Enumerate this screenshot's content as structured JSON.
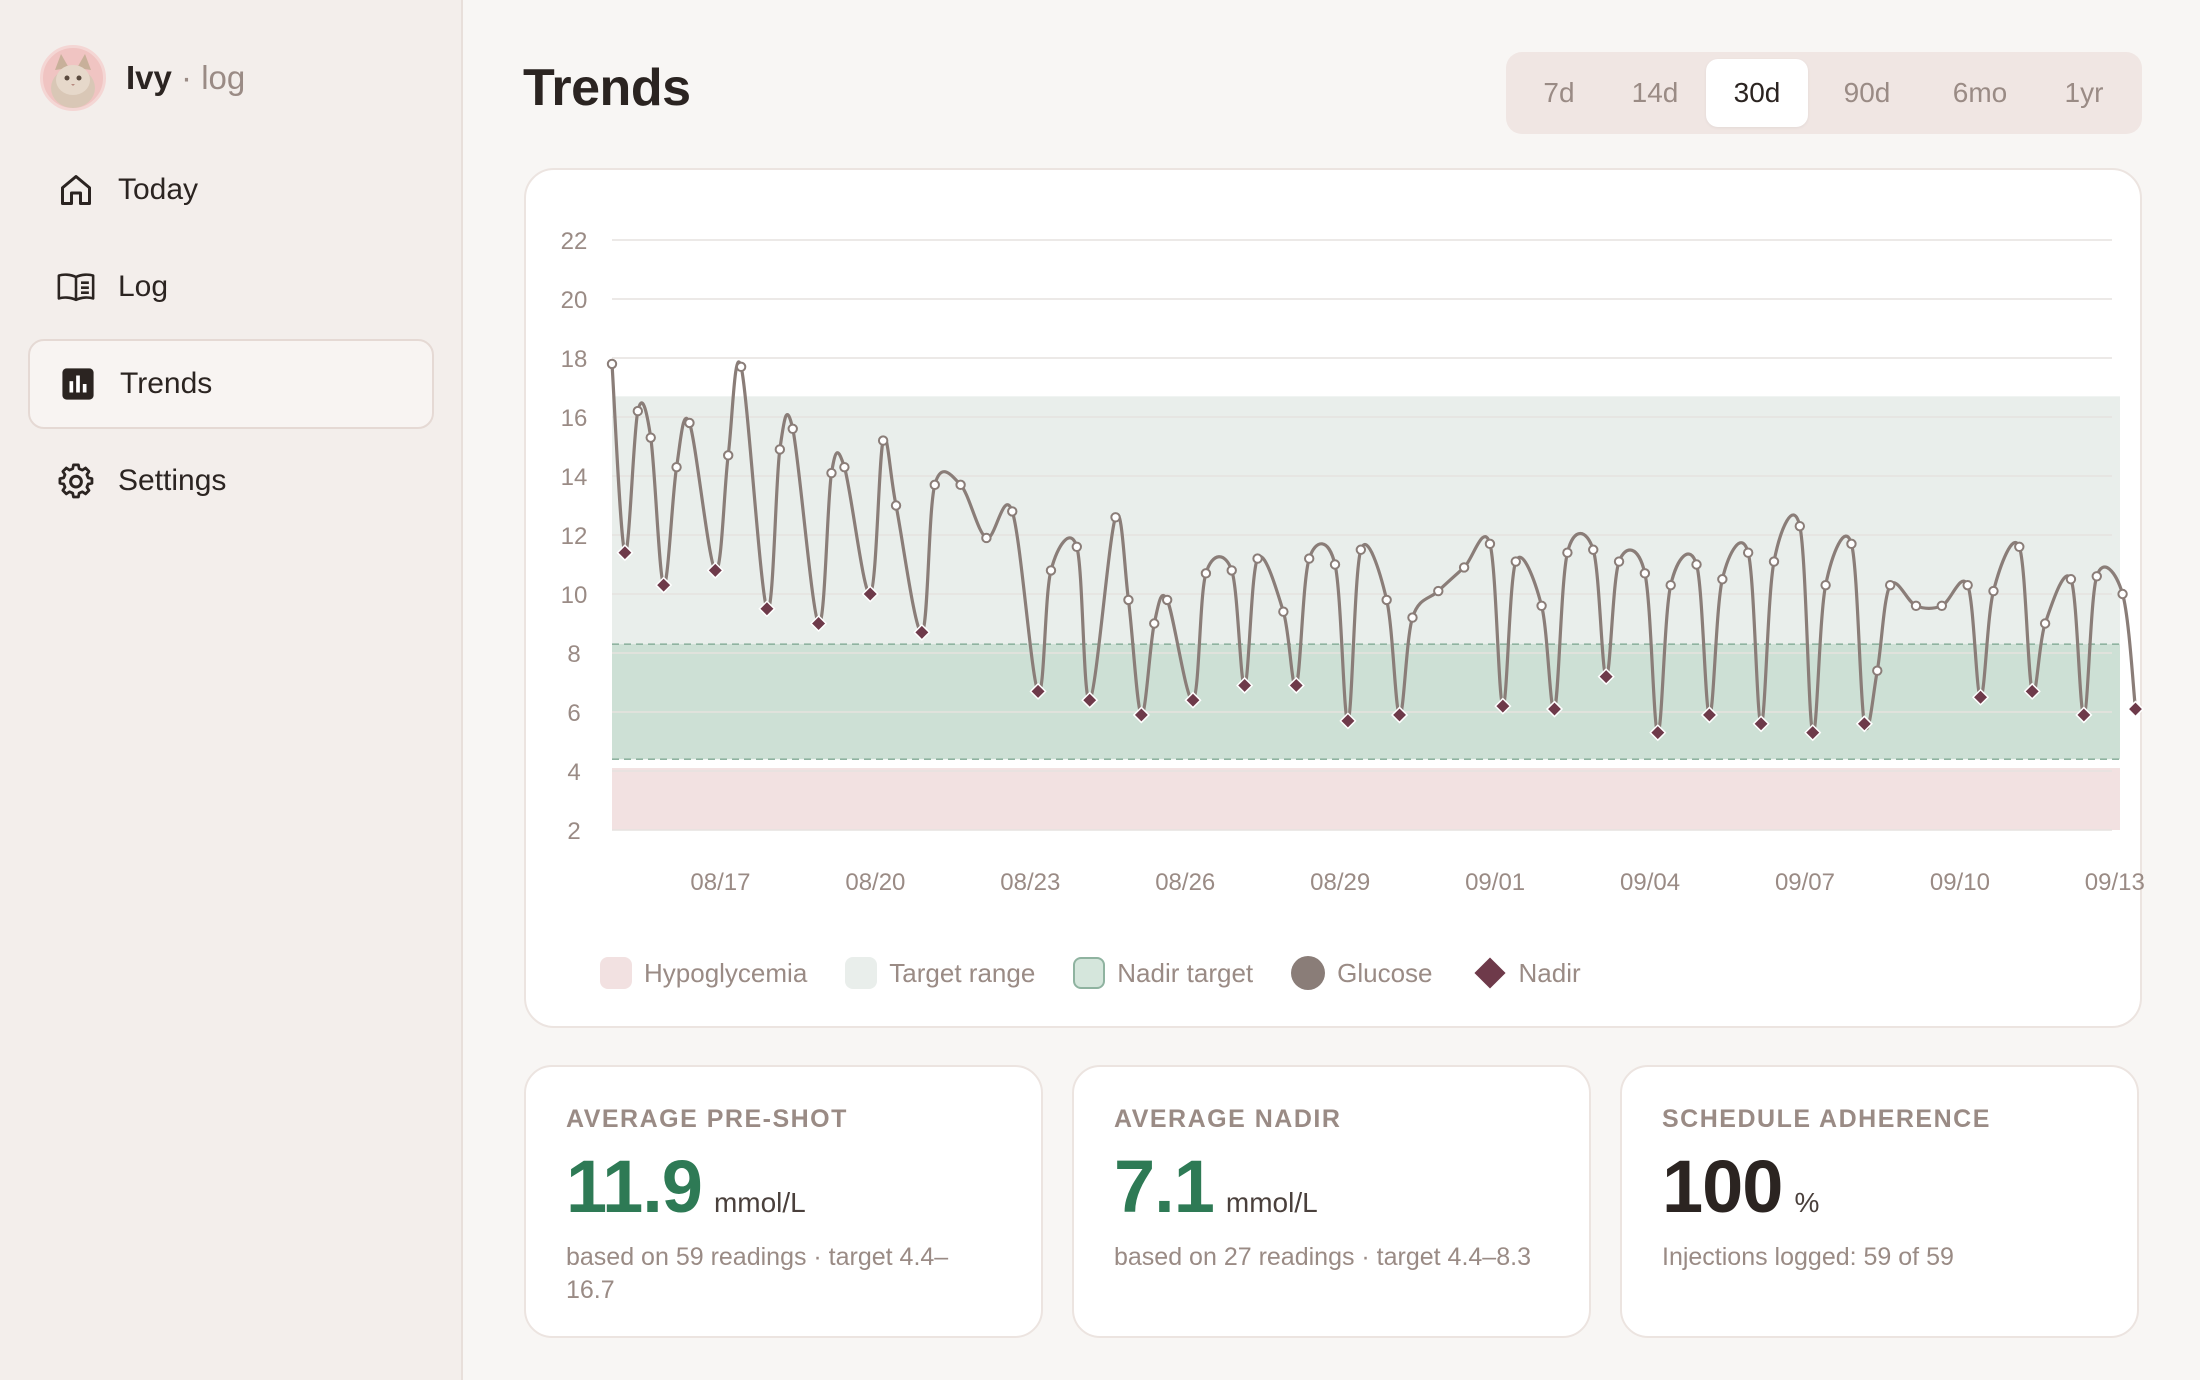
{
  "brand": {
    "name": "Ivy",
    "separator": " · ",
    "sub": "log"
  },
  "nav": [
    {
      "label": "Today",
      "icon": "home-icon",
      "active": false
    },
    {
      "label": "Log",
      "icon": "book-icon",
      "active": false
    },
    {
      "label": "Trends",
      "icon": "bar-chart-icon",
      "active": true
    },
    {
      "label": "Settings",
      "icon": "gear-icon",
      "active": false
    }
  ],
  "page": {
    "title": "Trends"
  },
  "ranges": [
    {
      "label": "7d",
      "active": false
    },
    {
      "label": "14d",
      "active": false
    },
    {
      "label": "30d",
      "active": true
    },
    {
      "label": "90d",
      "active": false
    },
    {
      "label": "6mo",
      "active": false
    },
    {
      "label": "1yr",
      "active": false
    }
  ],
  "colors": {
    "accent_green": "#2e7a55",
    "hypo_band": "#f2e1e1",
    "target_band": "#e9eeeb",
    "nadir_band": "#cde0d5",
    "glucose_line": "#8a7d78",
    "nadir_marker": "#6e3a4a"
  },
  "chart_data": {
    "type": "line",
    "ylim": [
      2,
      22
    ],
    "yticks": [
      2,
      4,
      6,
      8,
      10,
      12,
      14,
      16,
      18,
      20,
      22
    ],
    "x_ticks": [
      "08/17",
      "08/20",
      "08/23",
      "08/26",
      "08/29",
      "09/01",
      "09/04",
      "09/07",
      "09/10",
      "09/13"
    ],
    "x_range_days": [
      0,
      29.2
    ],
    "x_tick_days": [
      2.1,
      5.1,
      8.1,
      11.1,
      14.1,
      17.1,
      20.1,
      23.1,
      26.1,
      29.1
    ],
    "grid": true,
    "legend_position": "bottom-left",
    "bands": [
      {
        "name": "Hypoglycemia",
        "from": 2,
        "to": 4.1
      },
      {
        "name": "Target range",
        "from": 4.4,
        "to": 16.7
      },
      {
        "name": "Nadir target",
        "from": 4.4,
        "to": 8.3
      }
    ],
    "series": [
      {
        "name": "Glucose",
        "points": [
          [
            0.0,
            17.8
          ],
          [
            0.25,
            11.4
          ],
          [
            0.5,
            16.2
          ],
          [
            0.75,
            15.3
          ],
          [
            1.0,
            10.3
          ],
          [
            1.25,
            14.3
          ],
          [
            1.5,
            15.8
          ],
          [
            2.0,
            10.8
          ],
          [
            2.25,
            14.7
          ],
          [
            2.5,
            17.7
          ],
          [
            3.0,
            9.5
          ],
          [
            3.25,
            14.9
          ],
          [
            3.5,
            15.6
          ],
          [
            4.0,
            9.0
          ],
          [
            4.25,
            14.1
          ],
          [
            4.5,
            14.3
          ],
          [
            5.0,
            10.0
          ],
          [
            5.25,
            15.2
          ],
          [
            5.5,
            13.0
          ],
          [
            6.0,
            8.7
          ],
          [
            6.25,
            13.7
          ],
          [
            6.75,
            13.7
          ],
          [
            7.25,
            11.9
          ],
          [
            7.75,
            12.8
          ],
          [
            8.25,
            6.7
          ],
          [
            8.5,
            10.8
          ],
          [
            9.0,
            11.6
          ],
          [
            9.25,
            6.4
          ],
          [
            9.75,
            12.6
          ],
          [
            10.0,
            9.8
          ],
          [
            10.25,
            5.9
          ],
          [
            10.5,
            9.0
          ],
          [
            10.75,
            9.8
          ],
          [
            11.25,
            6.4
          ],
          [
            11.5,
            10.7
          ],
          [
            12.0,
            10.8
          ],
          [
            12.25,
            6.9
          ],
          [
            12.5,
            11.2
          ],
          [
            13.0,
            9.4
          ],
          [
            13.25,
            6.9
          ],
          [
            13.5,
            11.2
          ],
          [
            14.0,
            11.0
          ],
          [
            14.25,
            5.7
          ],
          [
            14.5,
            11.5
          ],
          [
            15.0,
            9.8
          ],
          [
            15.25,
            5.9
          ],
          [
            15.5,
            9.2
          ],
          [
            16.0,
            10.1
          ],
          [
            16.5,
            10.9
          ],
          [
            17.0,
            11.7
          ],
          [
            17.25,
            6.2
          ],
          [
            17.5,
            11.1
          ],
          [
            18.0,
            9.6
          ],
          [
            18.25,
            6.1
          ],
          [
            18.5,
            11.4
          ],
          [
            19.0,
            11.5
          ],
          [
            19.25,
            7.2
          ],
          [
            19.5,
            11.1
          ],
          [
            20.0,
            10.7
          ],
          [
            20.25,
            5.3
          ],
          [
            20.5,
            10.3
          ],
          [
            21.0,
            11.0
          ],
          [
            21.25,
            5.9
          ],
          [
            21.5,
            10.5
          ],
          [
            22.0,
            11.4
          ],
          [
            22.25,
            5.6
          ],
          [
            22.5,
            11.1
          ],
          [
            23.0,
            12.3
          ],
          [
            23.25,
            5.3
          ],
          [
            23.5,
            10.3
          ],
          [
            24.0,
            11.7
          ],
          [
            24.25,
            5.6
          ],
          [
            24.5,
            7.4
          ],
          [
            24.75,
            10.3
          ],
          [
            25.25,
            9.6
          ],
          [
            25.75,
            9.6
          ],
          [
            26.25,
            10.3
          ],
          [
            26.5,
            6.5
          ],
          [
            26.75,
            10.1
          ],
          [
            27.25,
            11.6
          ],
          [
            27.5,
            6.7
          ],
          [
            27.75,
            9.0
          ],
          [
            28.25,
            10.5
          ],
          [
            28.5,
            5.9
          ],
          [
            28.75,
            10.6
          ],
          [
            29.25,
            10.0
          ],
          [
            29.5,
            6.1
          ]
        ]
      },
      {
        "name": "Nadir",
        "points": [
          [
            0.25,
            11.4
          ],
          [
            1.0,
            10.3
          ],
          [
            2.0,
            10.8
          ],
          [
            3.0,
            9.5
          ],
          [
            4.0,
            9.0
          ],
          [
            5.0,
            10.0
          ],
          [
            6.0,
            8.7
          ],
          [
            8.25,
            6.7
          ],
          [
            9.25,
            6.4
          ],
          [
            10.25,
            5.9
          ],
          [
            11.25,
            6.4
          ],
          [
            12.25,
            6.9
          ],
          [
            13.25,
            6.9
          ],
          [
            14.25,
            5.7
          ],
          [
            15.25,
            5.9
          ],
          [
            17.25,
            6.2
          ],
          [
            18.25,
            6.1
          ],
          [
            19.25,
            7.2
          ],
          [
            20.25,
            5.3
          ],
          [
            21.25,
            5.9
          ],
          [
            22.25,
            5.6
          ],
          [
            23.25,
            5.3
          ],
          [
            24.25,
            5.6
          ],
          [
            26.5,
            6.5
          ],
          [
            27.5,
            6.7
          ],
          [
            28.5,
            5.9
          ],
          [
            29.5,
            6.1
          ]
        ]
      }
    ],
    "legend": [
      "Hypoglycemia",
      "Target range",
      "Nadir target",
      "Glucose",
      "Nadir"
    ]
  },
  "stats": [
    {
      "label": "AVERAGE PRE-SHOT",
      "value": "11.9",
      "unit": "mmol/L",
      "note": "based on 59 readings · target 4.4–16.7",
      "value_color": "#2e7a55"
    },
    {
      "label": "AVERAGE NADIR",
      "value": "7.1",
      "unit": "mmol/L",
      "note": "based on 27 readings · target 4.4–8.3",
      "value_color": "#2e7a55"
    },
    {
      "label": "SCHEDULE ADHERENCE",
      "value": "100",
      "unit": "%",
      "note": "Injections logged: 59 of 59",
      "value_color": "#2b2421"
    }
  ]
}
